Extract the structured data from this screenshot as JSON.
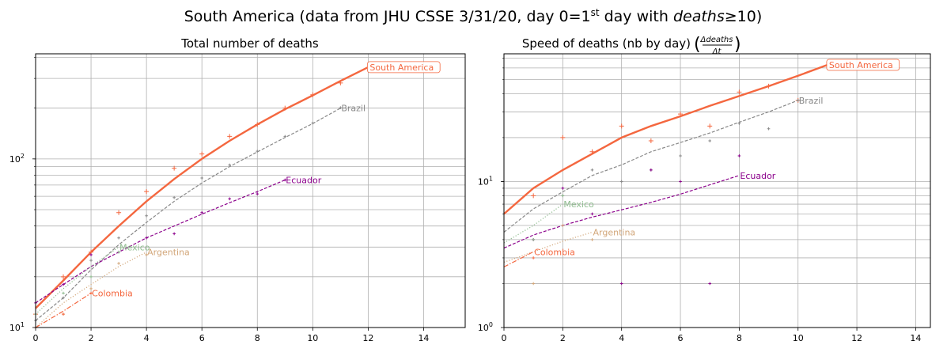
{
  "figure": {
    "title_prefix": "South America (data from JHU CSSE 3/31/20, day 0=1",
    "title_sup": "st",
    "title_mid": " day with ",
    "title_italic": "deaths",
    "title_suffix": "≥10)"
  },
  "chart_data": [
    {
      "type": "line",
      "title": "Total number of deaths",
      "xlabel": "",
      "ylabel": "",
      "xlim": [
        0,
        15.5
      ],
      "ylim": [
        10,
        420
      ],
      "yscale": "log",
      "grid": true,
      "x_ticks": [
        0,
        2,
        4,
        6,
        8,
        10,
        12,
        14
      ],
      "y_ticks": [
        {
          "value": 10,
          "base": "10",
          "exp": "1"
        },
        {
          "value": 100,
          "base": "10",
          "exp": "2"
        }
      ],
      "series": [
        {
          "name": "South America",
          "color": "#f4673f",
          "style": "solid",
          "width": 2.4,
          "fit_x": [
            0,
            1,
            2,
            3,
            4,
            5,
            6,
            7,
            8,
            9,
            10,
            11,
            12
          ],
          "fit_y": [
            13,
            19,
            28,
            40,
            56,
            76,
            100,
            128,
            160,
            197,
            238,
            290,
            350
          ],
          "points_x": [
            0,
            1,
            2,
            3,
            4,
            5,
            6,
            7,
            8,
            9,
            10,
            11
          ],
          "points_y": [
            12,
            20,
            28,
            48,
            64,
            88,
            107,
            136,
            160,
            200,
            240,
            282
          ]
        },
        {
          "name": "Brazil",
          "color": "#888888",
          "style": "dashed",
          "width": 1.2,
          "fit_x": [
            0,
            1,
            2,
            3,
            4,
            5,
            6,
            7,
            8,
            9,
            10,
            11
          ],
          "fit_y": [
            11,
            15,
            22,
            31,
            42,
            56,
            72,
            90,
            110,
            134,
            162,
            200
          ],
          "points_x": [
            0,
            1,
            2,
            3,
            4,
            5,
            6,
            7,
            8,
            9,
            10,
            11
          ],
          "points_y": [
            11,
            15,
            25,
            34,
            46,
            59,
            77,
            92,
            111,
            136,
            163,
            201
          ]
        },
        {
          "name": "Ecuador",
          "color": "#8b008b",
          "style": "dashed",
          "width": 1.2,
          "fit_x": [
            0,
            1,
            2,
            3,
            4,
            5,
            6,
            7,
            8,
            9
          ],
          "fit_y": [
            14,
            18,
            23,
            28,
            34,
            40,
            47,
            55,
            64,
            75
          ],
          "points_x": [
            0,
            1,
            2,
            3,
            4,
            5,
            6,
            7,
            8,
            9
          ],
          "points_y": [
            14,
            18,
            27,
            28,
            34,
            36,
            48,
            58,
            62,
            75
          ]
        },
        {
          "name": "Mexico",
          "color": "#8fbc8f",
          "style": "dotted",
          "width": 1.2,
          "fit_x": [
            0,
            1,
            2,
            3
          ],
          "fit_y": [
            12,
            17,
            23,
            30
          ],
          "points_x": [
            0,
            1,
            2,
            3
          ],
          "points_y": [
            12,
            16,
            20,
            28
          ]
        },
        {
          "name": "Argentina",
          "color": "#d2a679",
          "style": "dotted",
          "width": 1.2,
          "fit_x": [
            0,
            1,
            2,
            3,
            4
          ],
          "fit_y": [
            10,
            14,
            18,
            23,
            28
          ],
          "points_x": [
            0,
            1,
            2,
            3,
            4
          ],
          "points_y": [
            10,
            12,
            17,
            24,
            27
          ]
        },
        {
          "name": "Colombia",
          "color": "#f4673f",
          "style": "dashdot",
          "width": 1.2,
          "fit_x": [
            0,
            1,
            2
          ],
          "fit_y": [
            10,
            12.5,
            16
          ],
          "points_x": [
            0,
            1,
            2
          ],
          "points_y": [
            10,
            12,
            16
          ]
        }
      ]
    },
    {
      "type": "line",
      "title_text": "Speed of deaths (nb by day) ",
      "title_num": "Δdeaths",
      "title_den": "Δt",
      "xlabel": "",
      "ylabel": "",
      "xlim": [
        0,
        14.5
      ],
      "ylim": [
        1,
        75
      ],
      "yscale": "log",
      "grid": true,
      "x_ticks": [
        0,
        2,
        4,
        6,
        8,
        10,
        12,
        14
      ],
      "y_ticks": [
        {
          "value": 1,
          "base": "10",
          "exp": "0"
        },
        {
          "value": 10,
          "base": "10",
          "exp": "1"
        }
      ],
      "series": [
        {
          "name": "South America",
          "color": "#f4673f",
          "style": "solid",
          "width": 2.4,
          "fit_x": [
            0,
            1,
            2,
            3,
            4,
            5,
            6,
            7,
            8,
            9,
            10,
            11
          ],
          "fit_y": [
            6,
            9,
            12,
            15.5,
            20,
            24,
            28,
            33,
            38.5,
            45,
            53,
            63
          ],
          "points_x": [
            1,
            2,
            3,
            4,
            5,
            6,
            7,
            8,
            9,
            10
          ],
          "points_y": [
            8,
            20,
            16,
            24,
            19,
            29,
            24,
            41,
            45,
            36
          ]
        },
        {
          "name": "Brazil",
          "color": "#888888",
          "style": "dashed",
          "width": 1.2,
          "fit_x": [
            0,
            1,
            2,
            3,
            4,
            5,
            6,
            7,
            8,
            9,
            10
          ],
          "fit_y": [
            4.5,
            6.5,
            8.5,
            11,
            13,
            16,
            18.5,
            21.5,
            25.5,
            30,
            36
          ],
          "points_x": [
            1,
            2,
            3,
            4,
            5,
            6,
            7,
            8,
            9,
            10
          ],
          "points_y": [
            4,
            8,
            12,
            10,
            12,
            15,
            19,
            25,
            23,
            36
          ]
        },
        {
          "name": "Ecuador",
          "color": "#8b008b",
          "style": "dashed",
          "width": 1.2,
          "fit_x": [
            0,
            1,
            2,
            3,
            4,
            5,
            6,
            7,
            8
          ],
          "fit_y": [
            3.5,
            4.3,
            5,
            5.7,
            6.4,
            7.2,
            8.2,
            9.5,
            11
          ],
          "points_x": [
            1,
            2,
            3,
            4,
            5,
            6,
            7,
            8
          ],
          "points_y": [
            4,
            9,
            6,
            2,
            12,
            10,
            2,
            15
          ]
        },
        {
          "name": "Mexico",
          "color": "#8fbc8f",
          "style": "dotted",
          "width": 1.2,
          "fit_x": [
            0,
            1,
            2
          ],
          "fit_y": [
            3.8,
            5,
            7
          ],
          "points_x": [
            1,
            2
          ],
          "points_y": [
            4,
            8
          ]
        },
        {
          "name": "Argentina",
          "color": "#d2a679",
          "style": "dotted",
          "width": 1.2,
          "fit_x": [
            0,
            1,
            2,
            3
          ],
          "fit_y": [
            2.8,
            3.3,
            3.9,
            4.5
          ],
          "points_x": [
            1,
            2,
            3
          ],
          "points_y": [
            2,
            5,
            4
          ]
        },
        {
          "name": "Colombia",
          "color": "#f4673f",
          "style": "dashdot",
          "width": 1.2,
          "fit_x": [
            0,
            1
          ],
          "fit_y": [
            2.6,
            3.3
          ],
          "points_x": [
            1
          ],
          "points_y": [
            3
          ]
        }
      ]
    }
  ]
}
